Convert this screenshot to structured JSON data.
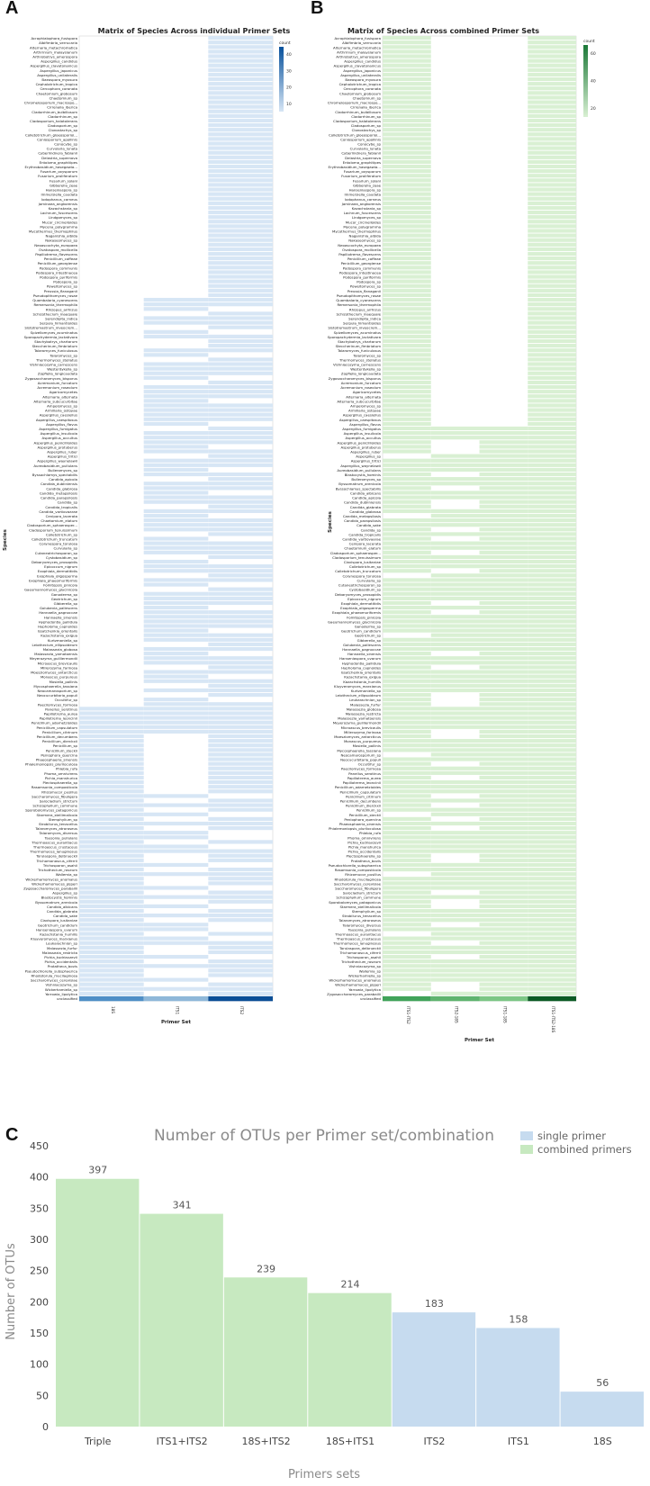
{
  "panels": {
    "a": "A",
    "b": "B",
    "c": "C"
  },
  "heatmap_a": {
    "title": "Matrix of Species Across individual Primer Sets",
    "xlabel": "Primer Set",
    "ylabel": "Species",
    "columns": [
      "18S",
      "ITS1",
      "ITS2"
    ],
    "legend_title": "count",
    "legend_ticks": [
      "40",
      "30",
      "20",
      "10"
    ],
    "color_low": "#d7e6f5",
    "color_high": "#08519c",
    "n_its2_only": 57,
    "n_its1_its2": 89,
    "n_all_three": 6,
    "n_18s_its2": 12,
    "its1_missing_in_block": [
      3,
      6,
      9,
      10,
      13,
      18,
      22,
      28,
      34,
      39,
      45,
      47,
      51,
      56,
      60,
      63,
      67,
      72,
      75,
      80,
      84,
      86
    ],
    "block3_pattern": [
      [
        1,
        0,
        1
      ],
      [
        1,
        1,
        0
      ],
      [
        1,
        0,
        1
      ],
      [
        1,
        1,
        1
      ],
      [
        1,
        0,
        1
      ],
      [
        1,
        1,
        0
      ],
      [
        1,
        0,
        1
      ],
      [
        1,
        1,
        1
      ],
      [
        1,
        0,
        1
      ],
      [
        1,
        1,
        0
      ],
      [
        1,
        1,
        0
      ],
      [
        1,
        0,
        1
      ],
      [
        1,
        1,
        0
      ],
      [
        1,
        1,
        1
      ],
      [
        1,
        0,
        1
      ],
      [
        1,
        0,
        1
      ],
      [
        1,
        1,
        0
      ],
      [
        1,
        0,
        1
      ],
      [
        1,
        1,
        1
      ],
      [
        1,
        0,
        1
      ]
    ],
    "footer_colors": [
      "#4f8fc6",
      "#8fb8d9",
      "#0b4e96"
    ],
    "species": [
      "Acrophialophora_fusispora",
      "Albifimbria_verrucaria",
      "Alternaria_metachromatica",
      "Arthrinium_malaysianum",
      "Arthrobotrys_amerospora",
      "Aspergillus_candidus",
      "Aspergillus_clavatonanicus",
      "Aspergillus_japonicus",
      "Aspergillus_unilateralis",
      "Baeospora_myosura",
      "Cephalotrichum_tropica",
      "Cercophora_coronata",
      "Chaetomium_globosum",
      "Chaetomium_sp",
      "Chromelosporium_macrospo...",
      "Cirrenalia_iberica",
      "Cladorrhinum_bulbillosum",
      "Cladorrhinum_sp",
      "Cladosporium_halotolerans",
      "Cladosporium_sp",
      "Clonostachys_sp",
      "Colletotrichum_gloeosporioi...",
      "Coniosporium_apollinis",
      "Conocybe_sp",
      "Curvularia_lunata",
      "Cyberlindnera_fabianii",
      "Delastria_supernova",
      "Entoloma_graphitipes",
      "Erythrobasidium_hasegawia...",
      "Fusarium_oxysporum",
      "Fusarium_proliferatum",
      "Fusarium_solani",
      "Gibberella_zeae",
      "Hanseniaspora_sp",
      "Immersiella_caudata",
      "Iodophanus_carneus",
      "Jaminaea_angkorensis",
      "Kazachstania_sp",
      "Lachnum_fuscescens",
      "Lindgomyces_sp",
      "Mucor_circinelloides",
      "Mycena_polygramma",
      "Mycothermus_thermophilus",
      "Naganishia_albida",
      "Nakaseomyces_sp",
      "Neoascochyta_europaea",
      "Ovatospora_mollicella",
      "Papiliotrema_flavescens",
      "Penicillium_coffeae",
      "Penicillium_georgiense",
      "Podospora_communis",
      "Podospora_intestinacea",
      "Podospora_pyriformis",
      "Podospora_sp",
      "Poweltomyces_sp",
      "Preussia_flanaganii",
      "Pseudopithomyces_rosae",
      "Quambalaria_cyanescens",
      "Remersonia_thermophila",
      "Rhizopus_arrhizus",
      "Schizothecium_inaequale",
      "Serendipita_indica",
      "Serpula_himantioides",
      "Sistotremastrum_niveocrem...",
      "Spizellomyces_acuminatus",
      "Sporopachydermia_lactativora",
      "Stachybotrys_chartarum",
      "Steccherinum_fimbriatum",
      "Talaromyces_funiculosus",
      "Talaromyces_sp",
      "Thermomyces_stellatus",
      "Vishniacozyma_carnescens",
      "Westerdykella_sp",
      "Zopfiella_longicaudata",
      "Zygosaccharomyces_bisporus",
      "Acremonium_furcatum",
      "Acremonium_roseolum",
      "Agaricomycetes",
      "Alternaria_alternata",
      "Alternaria_subcucurbitae",
      "Ampelomyces_sp",
      "Armillaria_ostoyae",
      "Aspergillus_caesiellus",
      "Aspergillus_caespitosus",
      "Aspergillus_flavus",
      "Aspergillus_fumigatus",
      "Aspergillus_insulicola",
      "Aspergillus_occultus",
      "Aspergillus_penicillioides",
      "Aspergillus_protuberus",
      "Aspergillus_ruber",
      "Aspergillus_tritici",
      "Aspergillus_waynelawii",
      "Aureobasidium_pullulans",
      "Bulleromyces_sp",
      "Byssochlamys_spectabilis",
      "Candida_apicola",
      "Candida_dubliniensis",
      "Candida_glabrosa",
      "Candida_metapsilosis",
      "Candida_parapsilosis",
      "Candida_sp",
      "Candida_tropicalis",
      "Candida_vartiovaarae",
      "Cenipora_lacerata",
      "Chaetomium_elatum",
      "Cladosporium_sphaerosper...",
      "Cladosporium_tenuissimum",
      "Colletotrichum_sp",
      "Colletotrichum_truncatum",
      "Corynespora_torulosa",
      "Curvularia_sp",
      "Cutaneotrichosporon_sp",
      "Cystobasidium_sp",
      "Debaryomyces_prosopidis",
      "Epicoccum_nigrum",
      "Exophiala_dermatitidis",
      "Exophiala_oligosperma",
      "Exophiala_phaeomuriformis",
      "Fomitopsis_pinicola",
      "Gaeumannomyces_glycinicola",
      "Ganoderma_sp",
      "Geotrichum_sp",
      "Gibberella_sp",
      "Golubevia_pallescens",
      "Hannaella_pagnoccae",
      "Hannaella_sinensis",
      "Hyphodontia_pallidula",
      "Hypholoma_capnoides",
      "Issatchenkia_orientalis",
      "Kazachstania_exigua",
      "Kurtzmaniella_sp",
      "Leiothecium_ellipsoideum",
      "Malassezia_globosa",
      "Malassezia_yamatoensis",
      "Meyerozyma_guilliermondii",
      "Microascus_brevicaulis",
      "Millerozyma_farinosa",
      "Moesziomyces_antarcticus",
      "Monascus_purpureus",
      "Mosiella_pollinis",
      "Mycosphaerella_tassiana",
      "Neocamarosporium_sp",
      "Neocucurbitaria_populi",
      "Occultifur_sp",
      "Paecilomyces_formosa",
      "Panellus_serotinus",
      "Papiliotrema_aurea",
      "Papiliotrema_leoncinii",
      "Penicillium_adametzioides",
      "Penicillium_capsulatum",
      "Penicillium_citrinum",
      "Penicillium_decumbens",
      "Penicillium_dierckxii",
      "Penicillium_sp",
      "Penicillium_steckii",
      "Peniophora_quercina",
      "Phaeosphaeria_sinensis",
      "Phialemoniopsis_pluriloculosa",
      "Phlebia_rufa",
      "Phoma_omnivirens",
      "Pichia_manshurica",
      "Plectosphaerella_sp",
      "Rasamsonia_composticola",
      "Rhizomucor_pusillus",
      "Saccharomyces_fibuligera",
      "Sarocladium_strictum",
      "Schizophyllum_commune",
      "Sporobolomyces_patagonicus",
      "Starmera_stellimalicola",
      "Stemphylium_sp",
      "Strobilurus_tenacellus",
      "Talaromyces_atroroseus",
      "Talaromyces_diversus",
      "Tausonia_pullulans",
      "Thermoascus_aurantiacus",
      "Thermoascus_crustaceus",
      "Thermomyces_lanuginosus",
      "Torulaspora_delbrueckii",
      "Trichomonascus_ciferrii",
      "Trichosporon_asahii",
      "Trichothecium_roseum",
      "Wallemia_sp",
      "Wickerhamomyces_anomalus",
      "Wickerhamomyces_pijperi",
      "Zygosaccharomyces_parabailii",
      "Aspergillus_sp",
      "Blastocystis_hominis",
      "Byssomatrum_arenicola",
      "Candida_albicans",
      "Candida_glabrata",
      "Candida_sake",
      "Clavispora_lusitaniae",
      "Geotrichum_candidum",
      "Hanseniaspora_uvarum",
      "Kazachstania_humilis",
      "Kluyveromyces_marxianus",
      "Leukarachnion_sp",
      "Malassezia_furfur",
      "Malassezia_restricta",
      "Pichia_kudriavzevii",
      "Pichia_occidentalis",
      "Protatheca_bovis",
      "Pseudochlorella_subsphaerica",
      "Rhodotorula_mucilaginosa",
      "Saccharomyces_cerevisiae",
      "Vishniacozyma_sp",
      "Wickerhamiella_sp",
      "Yarrowia_lipolytica",
      "unclassified"
    ]
  },
  "heatmap_b": {
    "title": "Matrix of Species Across combined Primer Sets",
    "xlabel": "Primer Set",
    "ylabel": "Species",
    "columns": [
      "ITS1-ITS2",
      "ITS2-18S",
      "ITS1-18S",
      "ITS1-ITS2-18S"
    ],
    "legend_title": "count",
    "legend_ticks": [
      "60",
      "40",
      "20"
    ],
    "color_low": "#d9f0d3",
    "color_high": "#1b7837",
    "footer_colors": [
      "#41a35a",
      "#5fb46f",
      "#7cc685",
      "#0c5a25"
    ],
    "n_top_block": 85,
    "species": [
      "Acrophialophora_fusispora",
      "Albifimbria_verrucaria",
      "Alternaria_metachromatica",
      "Arthrinium_malaysianum",
      "Arthrobotrys_amerospora",
      "Aspergillus_candidus",
      "Aspergillus_clavatonanicus",
      "Aspergillus_japonicus",
      "Aspergillus_unilateralis",
      "Baeospora_myosura",
      "Cephalotrichum_tropica",
      "Cercophora_coronata",
      "Chaetomium_globosum",
      "Chaetomium_sp",
      "Chromelosporium_macrospo...",
      "Cirrenalia_iberica",
      "Cladorrhinum_bulbillosum",
      "Cladorrhinum_sp",
      "Cladosporium_halotolerans",
      "Cladosporium_sp",
      "Clonostachys_sp",
      "Colletotrichum_gloeosporioi...",
      "Coniosporium_apollinis",
      "Conocybe_sp",
      "Curvularia_lunata",
      "Cyberlindnera_fabianii",
      "Delastria_supernova",
      "Entoloma_graphitipes",
      "Erythrobasidium_hasegawia...",
      "Fusarium_oxysporum",
      "Fusarium_proliferatum",
      "Fusarium_solani",
      "Gibberella_zeae",
      "Hanseniaspora_sp",
      "Immersiella_caudata",
      "Iodophanus_carneus",
      "Jaminaea_angkorensis",
      "Kazachstania_sp",
      "Lachnum_fuscescens",
      "Lindgomyces_sp",
      "Mucor_circinelloides",
      "Mycena_polygramma",
      "Mycothermus_thermophilus",
      "Naganishia_albida",
      "Nakaseomyces_sp",
      "Neoascochyta_europaea",
      "Ovatospora_mollicella",
      "Papiliotrema_flavescens",
      "Penicillium_coffeae",
      "Penicillium_georgiense",
      "Podospora_communis",
      "Podospora_intestinacea",
      "Podospora_pyriformis",
      "Podospora_sp",
      "Poweltomyces_sp",
      "Preussia_flanaganii",
      "Pseudopithomyces_rosae",
      "Quambalaria_cyanescens",
      "Remersonia_thermophila",
      "Rhizopus_arrhizus",
      "Schizothecium_inaequale",
      "Serendipita_indica",
      "Serpula_himantioides",
      "Sistotremastrum_niveocrem...",
      "Spizellomyces_acuminatus",
      "Sporopachydermia_lactativora",
      "Stachybotrys_chartarum",
      "Steccherinum_fimbriatum",
      "Talaromyces_funiculosus",
      "Talaromyces_sp",
      "Thermomyces_stellatus",
      "Vishniacozyma_carnescens",
      "Westerdykella_sp",
      "Zopfiella_longicaudata",
      "Zygosaccharomyces_bisporus",
      "Acremonium_furcatum",
      "Acremonium_roseolum",
      "Agaricomycetes",
      "Alternaria_alternata",
      "Alternaria_subcucurbitae",
      "Ampelomyces_sp",
      "Armillaria_ostoyae",
      "Aspergillus_caesiellus",
      "Aspergillus_caespitosus",
      "Aspergillus_flavus",
      "Aspergillus_fumigatus",
      "Aspergillus_insulicola",
      "Aspergillus_occultus",
      "Aspergillus_penicillioides",
      "Aspergillus_protuberus",
      "Aspergillus_ruber",
      "Aspergillus_sp",
      "Aspergillus_tritici",
      "Aspergillus_waynelawii",
      "Aureobasidium_pullulans",
      "Blastocystis_hominis",
      "Bulleromyces_sp",
      "Byssomatrum_arenicola",
      "Byssochlamys_spectabilis",
      "Candida_albicans",
      "Candida_apicola",
      "Candida_dubliniensis",
      "Candida_glabrata",
      "Candida_glabrosa",
      "Candida_metapsilosis",
      "Candida_parapsilosis",
      "Candida_sake",
      "Candida_sp",
      "Candida_tropicalis",
      "Candida_vartiovaarae",
      "Cenipora_lacerata",
      "Chaetomium_elatum",
      "Cladosporium_sphaerosper...",
      "Cladosporium_tenuissimum",
      "Clavispora_lusitaniae",
      "Colletotrichum_sp",
      "Colletotrichum_truncatum",
      "Corynespora_torulosa",
      "Curvularia_sp",
      "Cutaneotrichosporon_sp",
      "Cystobasidium_sp",
      "Debaryomyces_prosopidis",
      "Epicoccum_nigrum",
      "Exophiala_dermatitidis",
      "Exophiala_oligosperma",
      "Exophiala_phaeomuriformis",
      "Fomitopsis_pinicola",
      "Gaeumannomyces_glycinicola",
      "Ganoderma_sp",
      "Geotrichum_candidum",
      "Geotrichum_sp",
      "Gibberella_sp",
      "Golubevia_pallescens",
      "Hannaella_pagnoccae",
      "Hannaella_sinensis",
      "Hanseniaspora_uvarum",
      "Hyphodontia_pallidula",
      "Hypholoma_capnoides",
      "Issatchenkia_orientalis",
      "Kazachstania_exigua",
      "Kazachstania_humilis",
      "Kluyveromyces_marxianus",
      "Kurtzmaniella_sp",
      "Leiothecium_ellipsoideum",
      "Leukarachnion_sp",
      "Malassezia_furfur",
      "Malassezia_globosa",
      "Malassezia_restricta",
      "Malassezia_yamatoensis",
      "Meyerozyma_guilliermondii",
      "Microascus_brevicaulis",
      "Millerozyma_farinosa",
      "Moesziomyces_antarcticus",
      "Monascus_purpureus",
      "Mosiella_pollinis",
      "Mycosphaerella_tassiana",
      "Neocamarosporium_sp",
      "Neocucurbitaria_populi",
      "Occultifur_sp",
      "Paecilomyces_formosa",
      "Panellus_serotinus",
      "Papiliotrema_aurea",
      "Papiliotrema_leoncinii",
      "Penicillium_adametzioides",
      "Penicillium_capsulatum",
      "Penicillium_citrinum",
      "Penicillium_decumbens",
      "Penicillium_dierckxii",
      "Penicillium_sp",
      "Penicillium_steckii",
      "Peniophora_quercina",
      "Phaeosphaeria_sinensis",
      "Phialemoniopsis_pluriloculosa",
      "Phlebia_rufa",
      "Phoma_omnivirens",
      "Pichia_kudriavzevii",
      "Pichia_manshurica",
      "Pichia_occidentalis",
      "Plectosphaerella_sp",
      "Protatheca_bovis",
      "Pseudochlorella_subsphaerica",
      "Rasamsonia_composticola",
      "Rhizomucor_pusillus",
      "Rhodotorula_mucilaginosa",
      "Saccharomyces_cerevisiae",
      "Saccharomyces_fibuligera",
      "Sarocladium_strictum",
      "Schizophyllum_commune",
      "Sporobolomyces_patagonicus",
      "Starmera_stellimalicola",
      "Stemphylium_sp",
      "Strobilurus_tenacellus",
      "Talaromyces_atroroseus",
      "Talaromyces_diversus",
      "Tausonia_pullulans",
      "Thermoascus_aurantiacus",
      "Thermoascus_crustaceus",
      "Thermomyces_lanuginosus",
      "Torulaspora_delbrueckii",
      "Trichomonascus_ciferrii",
      "Trichosporon_asahii",
      "Trichothecium_roseum",
      "Vishniacozyma_sp",
      "Wallemia_sp",
      "Wickerhamiella_sp",
      "Wickerhamomyces_anomalus",
      "Wickerhamomyces_pijperi",
      "Yarrowia_lipolytica",
      "Zygosaccharomyces_parabailii",
      "unclassified"
    ]
  },
  "chart_data": {
    "type": "bar",
    "title": "Number of OTUs per Primer set/combination",
    "xlabel": "Primers sets",
    "ylabel": "Number of OTUs",
    "categories": [
      "Triple",
      "ITS1+ITS2",
      "18S+ITS2",
      "18S+ITS1",
      "ITS2",
      "ITS1",
      "18S"
    ],
    "values": [
      397,
      341,
      239,
      214,
      183,
      158,
      56
    ],
    "groups": [
      "combined",
      "combined",
      "combined",
      "combined",
      "single",
      "single",
      "single"
    ],
    "legend": [
      {
        "key": "single",
        "label": "single primer",
        "color": "#c6dbef"
      },
      {
        "key": "combined",
        "label": "combined primers",
        "color": "#c7e9c0"
      }
    ],
    "ylim": [
      0,
      450
    ],
    "yticks": [
      0,
      50,
      100,
      150,
      200,
      250,
      300,
      350,
      400,
      450
    ],
    "legend_position": "top-right",
    "grid": false
  }
}
